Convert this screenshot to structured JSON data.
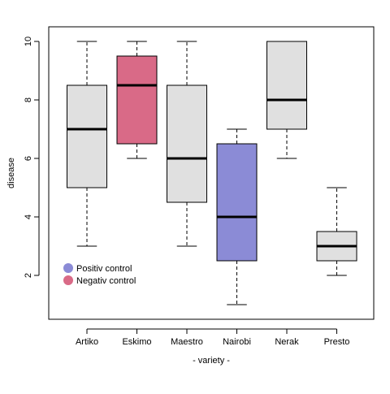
{
  "chart_data": {
    "type": "boxplot",
    "title": "",
    "xlabel": "- variety -",
    "ylabel": "disease",
    "ylim": [
      0.5,
      10.5
    ],
    "yticks": [
      2,
      4,
      6,
      8,
      10
    ],
    "grid": false,
    "legend_position": "bottom-left",
    "categories": [
      "Artiko",
      "Eskimo",
      "Maestro",
      "Nairobi",
      "Nerak",
      "Presto"
    ],
    "boxes": [
      {
        "category": "Artiko",
        "whisker_low": 3,
        "q1": 5,
        "median": 7,
        "q3": 8.5,
        "whisker_high": 10,
        "group": "default"
      },
      {
        "category": "Eskimo",
        "whisker_low": 6,
        "q1": 6.5,
        "median": 8.5,
        "q3": 9.5,
        "whisker_high": 10,
        "group": "negative"
      },
      {
        "category": "Maestro",
        "whisker_low": 3,
        "q1": 4.5,
        "median": 6,
        "q3": 8.5,
        "whisker_high": 10,
        "group": "default"
      },
      {
        "category": "Nairobi",
        "whisker_low": 1,
        "q1": 2.5,
        "median": 4,
        "q3": 6.5,
        "whisker_high": 7,
        "group": "positive"
      },
      {
        "category": "Nerak",
        "whisker_low": 6,
        "q1": 7,
        "median": 8,
        "q3": 10,
        "whisker_high": 10,
        "group": "default"
      },
      {
        "category": "Presto",
        "whisker_low": 2,
        "q1": 2.5,
        "median": 3,
        "q3": 3.5,
        "whisker_high": 5,
        "group": "default"
      }
    ],
    "colors": {
      "default": "#e0e0e0",
      "positive": "#8b8bd6",
      "negative": "#d96a87"
    },
    "legend": [
      {
        "label": "Positiv control",
        "group": "positive"
      },
      {
        "label": "Negativ control",
        "group": "negative"
      }
    ]
  }
}
